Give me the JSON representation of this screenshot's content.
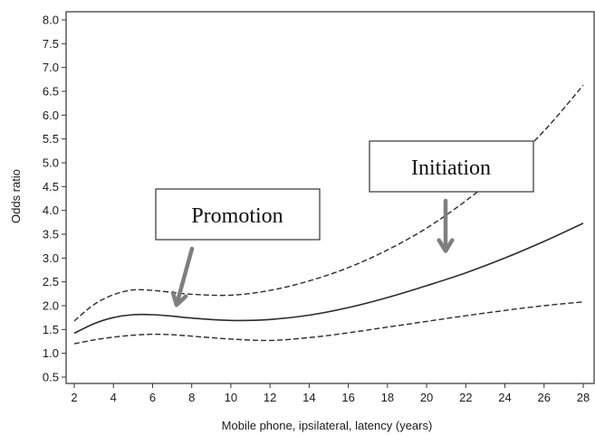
{
  "chart_data": {
    "type": "line",
    "xlabel": "Mobile phone, ipsilateral, latency (years)",
    "ylabel": "Odds ratio",
    "xlim": [
      2,
      28
    ],
    "ylim": [
      0.5,
      8.0
    ],
    "xticks": [
      2,
      4,
      6,
      8,
      10,
      12,
      14,
      16,
      18,
      20,
      22,
      24,
      26,
      28
    ],
    "yticks": [
      0.5,
      1.0,
      1.5,
      2.0,
      2.5,
      3.0,
      3.5,
      4.0,
      4.5,
      5.0,
      5.5,
      6.0,
      6.5,
      7.0,
      7.5,
      8.0
    ],
    "grid": false,
    "series": [
      {
        "style": "dashed",
        "x": [
          2,
          3,
          4,
          5,
          6,
          7,
          8,
          10,
          12,
          14,
          16,
          18,
          20,
          22,
          24,
          26,
          28
        ],
        "values": [
          1.68,
          2.02,
          2.23,
          2.33,
          2.32,
          2.28,
          2.24,
          2.22,
          2.32,
          2.52,
          2.8,
          3.17,
          3.63,
          4.2,
          4.87,
          5.67,
          6.63
        ]
      },
      {
        "style": "solid",
        "x": [
          2,
          3,
          4,
          5,
          6,
          7,
          8,
          10,
          12,
          14,
          16,
          18,
          20,
          22,
          24,
          26,
          28
        ],
        "values": [
          1.42,
          1.62,
          1.75,
          1.81,
          1.81,
          1.78,
          1.74,
          1.69,
          1.71,
          1.8,
          1.96,
          2.17,
          2.42,
          2.69,
          3.0,
          3.35,
          3.73
        ]
      },
      {
        "style": "dashed",
        "x": [
          2,
          3,
          4,
          5,
          6,
          7,
          8,
          10,
          12,
          14,
          16,
          18,
          20,
          22,
          24,
          26,
          28
        ],
        "values": [
          1.2,
          1.28,
          1.34,
          1.38,
          1.4,
          1.39,
          1.36,
          1.3,
          1.27,
          1.33,
          1.43,
          1.55,
          1.67,
          1.79,
          1.9,
          2.0,
          2.08
        ]
      }
    ],
    "annotations": [
      {
        "text": "Promotion",
        "points_to": {
          "x": 7.5,
          "y": 2.28
        }
      },
      {
        "text": "Initiation",
        "points_to": {
          "x": 21.2,
          "y": 3.3
        }
      }
    ]
  },
  "colors": {
    "line": "#2b2b2b",
    "axis": "#333333",
    "arrow": "#7f7f7f"
  }
}
